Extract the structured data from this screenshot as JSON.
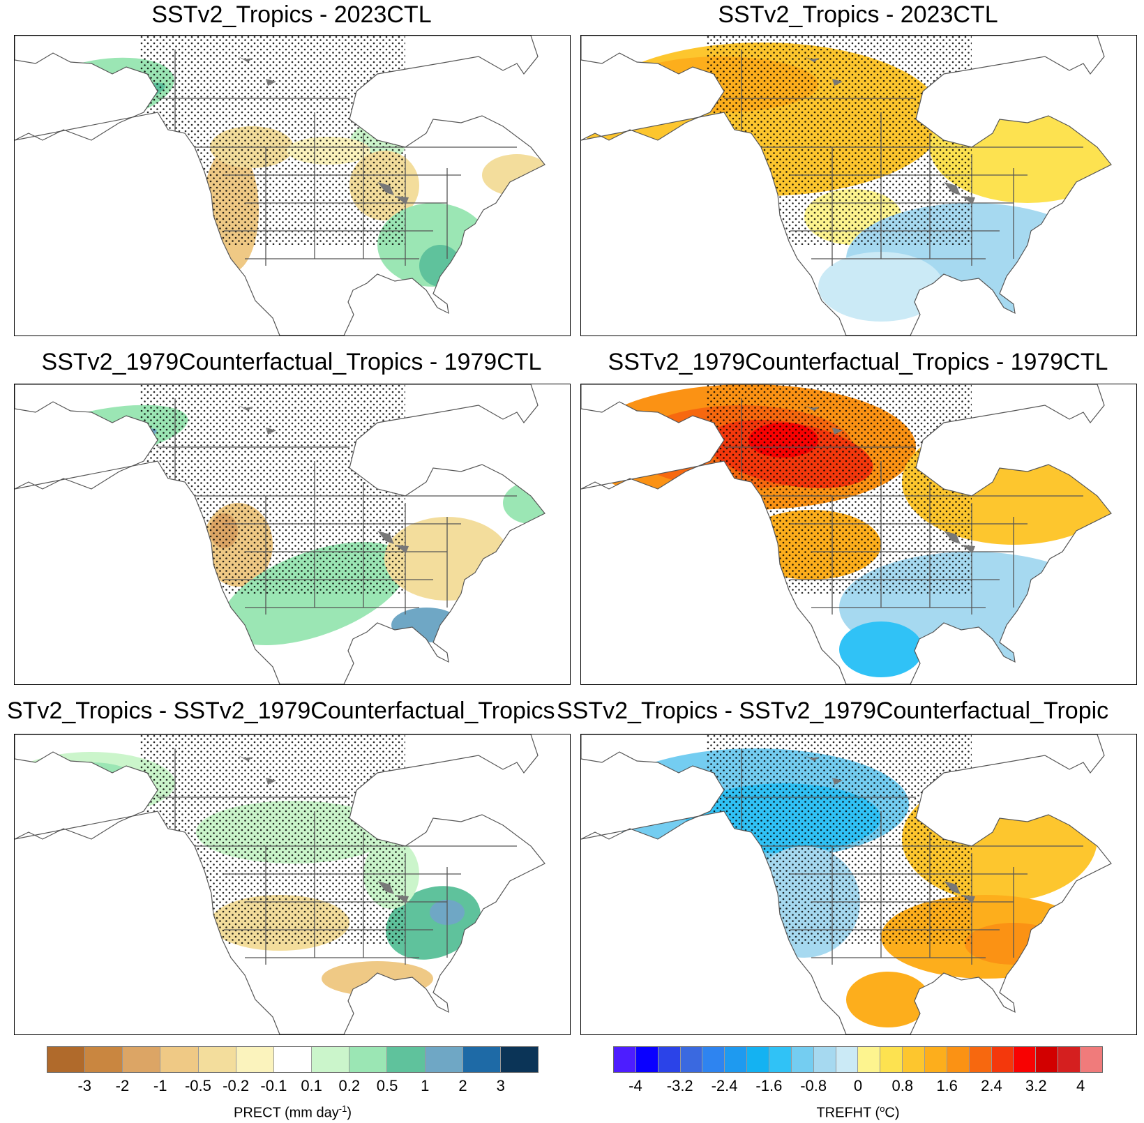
{
  "panels": [
    {
      "id": "p1",
      "title": "SSTv2_Tropics - 2023CTL",
      "variable": "precip",
      "scenario": "a"
    },
    {
      "id": "p2",
      "title": "SSTv2_Tropics - 2023CTL",
      "variable": "temp",
      "scenario": "a"
    },
    {
      "id": "p3",
      "title": "SSTv2_1979Counterfactual_Tropics - 1979CTL",
      "variable": "precip",
      "scenario": "b"
    },
    {
      "id": "p4",
      "title": "SSTv2_1979Counterfactual_Tropics - 1979CTL",
      "variable": "temp",
      "scenario": "b"
    },
    {
      "id": "p5",
      "title": "STv2_Tropics - SSTv2_1979Counterfactual_Tropics",
      "variable": "precip",
      "scenario": "c"
    },
    {
      "id": "p6",
      "title": "SSTv2_Tropics - SSTv2_1979Counterfactual_Tropic",
      "variable": "temp",
      "scenario": "c"
    }
  ],
  "colorbars": {
    "precip": {
      "label_main": "PRECT (mm day",
      "label_sup": "-1",
      "label_end": ")",
      "colors": [
        "#b06a2b",
        "#c98640",
        "#dca565",
        "#efc985",
        "#f3dd9c",
        "#fbf3bd",
        "#ffffff",
        "#cbf5cb",
        "#9be6b4",
        "#5fc29c",
        "#6fa7c5",
        "#1e6aa6",
        "#0b3457"
      ],
      "ticks": [
        "-3",
        "-2",
        "-1",
        "-0.5",
        "-0.2",
        "-0.1",
        "0.1",
        "0.2",
        "0.5",
        "1",
        "2",
        "3"
      ]
    },
    "temp": {
      "label_main": "TREFHT (",
      "label_sup": "o",
      "label_end": "C)",
      "colors": [
        "#4d1dff",
        "#0a00ff",
        "#2b43e8",
        "#3a69e0",
        "#2e84f0",
        "#1e9af0",
        "#14b2f2",
        "#30c2f6",
        "#74cdf1",
        "#a6d9f0",
        "#cbeaf6",
        "#fdf48f",
        "#fde250",
        "#fdc62e",
        "#fdae1c",
        "#fb9214",
        "#f7680f",
        "#f4380c",
        "#f80202",
        "#d20000",
        "#d51f1f",
        "#f07b7b"
      ],
      "ticks": [
        "-4",
        "-3.2",
        "-2.4",
        "-1.6",
        "-0.8",
        "0",
        "0.8",
        "1.6",
        "2.4",
        "3.2",
        "4"
      ]
    }
  }
}
